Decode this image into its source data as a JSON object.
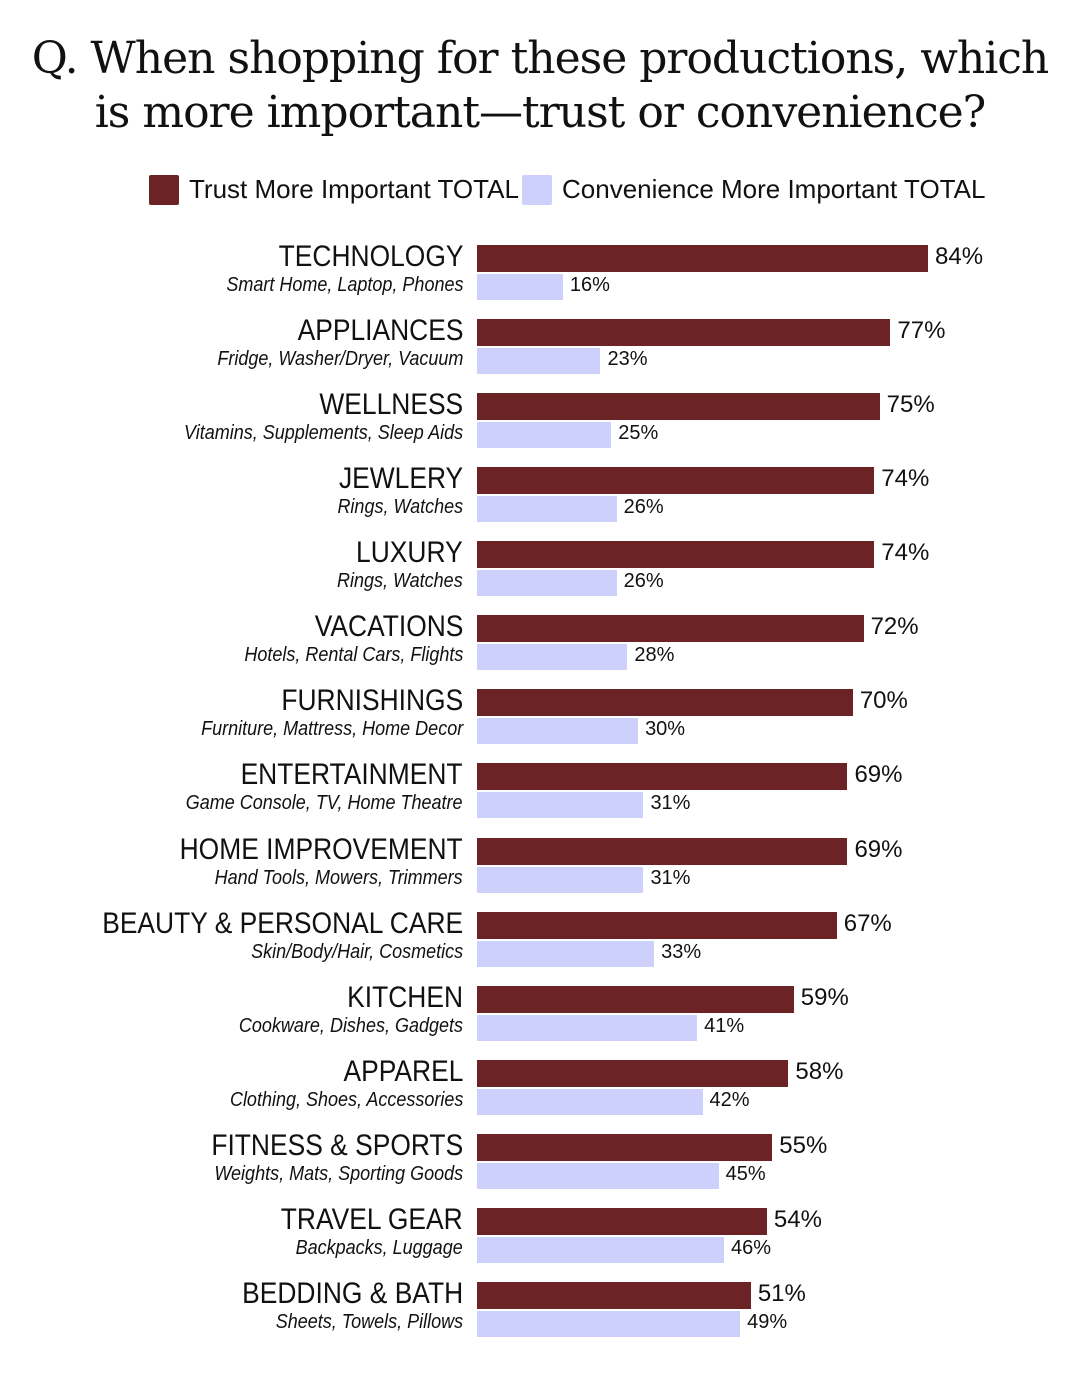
{
  "chart_data": {
    "type": "bar",
    "orientation": "horizontal",
    "title": "Q. When shopping for these productions, which is more important—trust or convenience?",
    "title_lines": [
      "Q. When shopping for these productions, which",
      "is more important—trust or convenience?"
    ],
    "xlim": [
      0,
      100
    ],
    "grid": false,
    "legend_placement": "top",
    "colors": {
      "trust": "#6b2326",
      "convenience": "#cdd0fb"
    },
    "categories": [
      {
        "name": "TECHNOLOGY",
        "sub": "Smart Home, Laptop, Phones"
      },
      {
        "name": "APPLIANCES",
        "sub": "Fridge, Washer/Dryer, Vacuum"
      },
      {
        "name": "WELLNESS",
        "sub": "Vitamins, Supplements, Sleep Aids"
      },
      {
        "name": "JEWLERY",
        "sub": "Rings, Watches"
      },
      {
        "name": "LUXURY",
        "sub": "Rings, Watches"
      },
      {
        "name": "VACATIONS",
        "sub": "Hotels, Rental Cars, Flights"
      },
      {
        "name": "FURNISHINGS",
        "sub": "Furniture, Mattress, Home Decor"
      },
      {
        "name": "ENTERTAINMENT",
        "sub": "Game Console, TV, Home Theatre"
      },
      {
        "name": "HOME IMPROVEMENT",
        "sub": "Hand Tools, Mowers, Trimmers"
      },
      {
        "name": "BEAUTY & PERSONAL CARE",
        "sub": "Skin/Body/Hair, Cosmetics"
      },
      {
        "name": "KITCHEN",
        "sub": "Cookware, Dishes, Gadgets"
      },
      {
        "name": "APPAREL",
        "sub": "Clothing, Shoes, Accessories"
      },
      {
        "name": "FITNESS & SPORTS",
        "sub": "Weights, Mats, Sporting Goods"
      },
      {
        "name": "TRAVEL GEAR",
        "sub": "Backpacks, Luggage"
      },
      {
        "name": "BEDDING & BATH",
        "sub": "Sheets, Towels, Pillows"
      }
    ],
    "series": [
      {
        "name": "Trust More Important TOTAL",
        "values": [
          84,
          77,
          75,
          74,
          74,
          72,
          70,
          69,
          69,
          67,
          59,
          58,
          55,
          54,
          51
        ]
      },
      {
        "name": "Convenience More Important TOTAL",
        "values": [
          16,
          23,
          25,
          26,
          26,
          28,
          30,
          31,
          31,
          33,
          41,
          42,
          45,
          46,
          49
        ]
      }
    ],
    "value_suffix": "%"
  }
}
